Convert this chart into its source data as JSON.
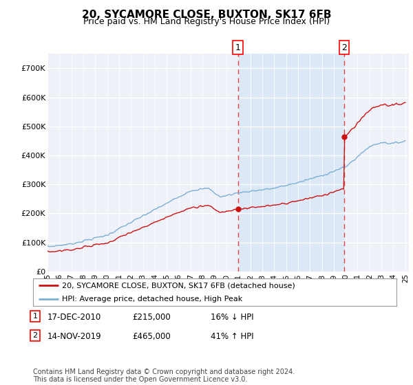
{
  "title": "20, SYCAMORE CLOSE, BUXTON, SK17 6FB",
  "subtitle": "Price paid vs. HM Land Registry's House Price Index (HPI)",
  "ylim": [
    0,
    750000
  ],
  "yticks": [
    0,
    100000,
    200000,
    300000,
    400000,
    500000,
    600000,
    700000
  ],
  "ytick_labels": [
    "£0",
    "£100K",
    "£200K",
    "£300K",
    "£400K",
    "£500K",
    "£600K",
    "£700K"
  ],
  "x_start_year": 1995,
  "x_end_year": 2025,
  "sale1_date": 2010.96,
  "sale1_price": 215000,
  "sale2_date": 2019.87,
  "sale2_price": 465000,
  "legend_line1": "20, SYCAMORE CLOSE, BUXTON, SK17 6FB (detached house)",
  "legend_line2": "HPI: Average price, detached house, High Peak",
  "footer": "Contains HM Land Registry data © Crown copyright and database right 2024.\nThis data is licensed under the Open Government Licence v3.0.",
  "hpi_color": "#7bafd4",
  "price_color": "#cc1111",
  "vline_color": "#dd3333",
  "background_color": "#ffffff",
  "plot_bg_color": "#eef2f8",
  "shade_color": "#dce8f5",
  "row1_date": "17-DEC-2010",
  "row1_price": "£215,000",
  "row1_pct": "16% ↓ HPI",
  "row2_date": "14-NOV-2019",
  "row2_price": "£465,000",
  "row2_pct": "41% ↑ HPI"
}
